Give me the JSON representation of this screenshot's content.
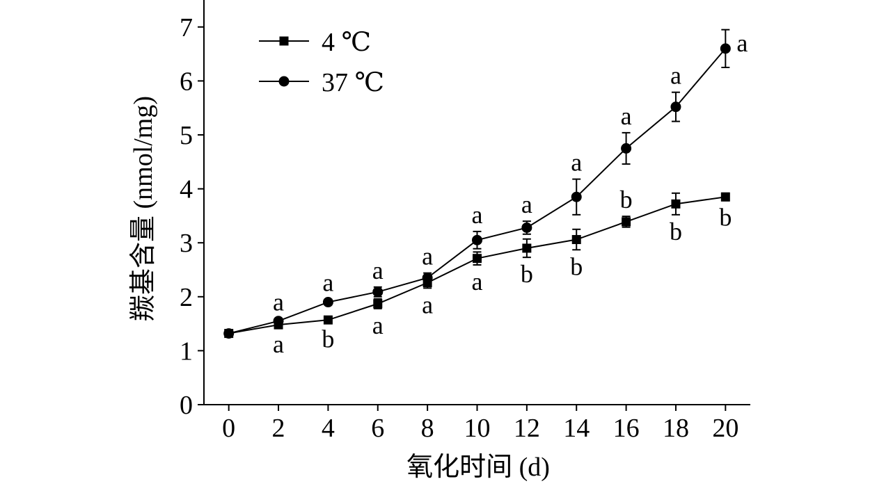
{
  "chart_data": {
    "type": "line",
    "xlabel": "氧化时间 (d)",
    "ylabel": "羰基含量 (nmol/mg)",
    "x": [
      0,
      2,
      4,
      6,
      8,
      10,
      12,
      14,
      16,
      18,
      20
    ],
    "xlim": [
      -1,
      21
    ],
    "ylim": [
      0,
      7.5
    ],
    "x_ticks": [
      "0",
      "2",
      "4",
      "6",
      "8",
      "10",
      "12",
      "14",
      "16",
      "18",
      "20"
    ],
    "y_ticks": [
      "0",
      "1",
      "2",
      "3",
      "4",
      "5",
      "6",
      "7"
    ],
    "legend_position": "top-left",
    "series": [
      {
        "name": "4 ℃",
        "marker": "square",
        "values": [
          1.32,
          1.48,
          1.57,
          1.87,
          2.26,
          2.71,
          2.9,
          3.06,
          3.39,
          3.72,
          3.85
        ],
        "errors": [
          0.04,
          0.05,
          0.04,
          0.09,
          0.1,
          0.12,
          0.17,
          0.19,
          0.1,
          0.2,
          0.07
        ],
        "labels": [
          "",
          "a",
          "b",
          "a",
          "a",
          "a",
          "b",
          "b",
          "b",
          "b",
          "b"
        ],
        "label_side": [
          "",
          "below",
          "below",
          "below",
          "below",
          "below",
          "below",
          "below",
          "above",
          "below",
          "below"
        ]
      },
      {
        "name": "37 ℃",
        "marker": "circle",
        "values": [
          1.32,
          1.55,
          1.9,
          2.09,
          2.35,
          3.05,
          3.28,
          3.85,
          4.75,
          5.52,
          6.6
        ],
        "errors": [
          0.04,
          0.04,
          0.05,
          0.09,
          0.09,
          0.16,
          0.12,
          0.33,
          0.29,
          0.27,
          0.35
        ],
        "labels": [
          "",
          "a",
          "a",
          "a",
          "a",
          "a",
          "a",
          "a",
          "a",
          "a",
          "a"
        ],
        "label_side": [
          "",
          "above",
          "above",
          "above",
          "above",
          "above",
          "above",
          "above",
          "above",
          "above",
          "right"
        ]
      }
    ]
  }
}
